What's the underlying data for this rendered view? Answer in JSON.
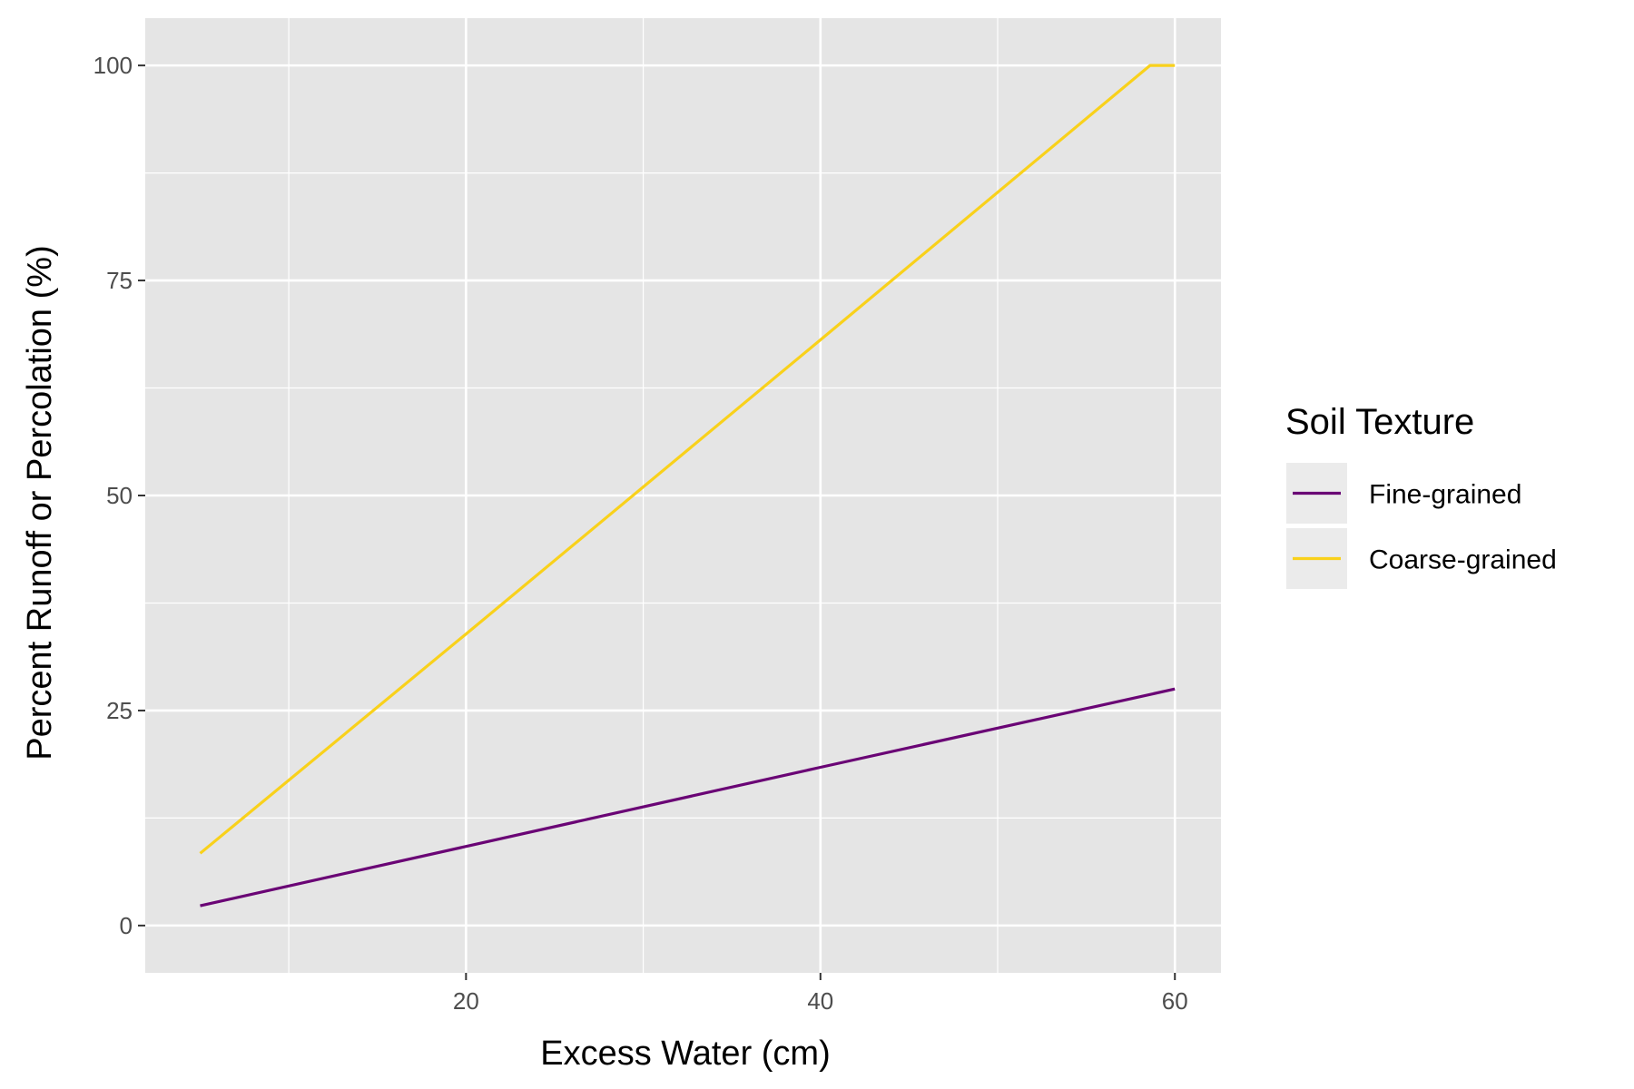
{
  "chart_data": {
    "type": "line",
    "xlabel": "Excess Water (cm)",
    "ylabel": "Percent Runoff or Percolation (%)",
    "xlim": [
      1.9,
      62.6
    ],
    "ylim": [
      -5.5,
      105.5
    ],
    "x_ticks": [
      20,
      40,
      60
    ],
    "x_minor_ticks": [
      10,
      30,
      50
    ],
    "y_ticks": [
      0,
      25,
      50,
      75,
      100
    ],
    "y_minor_ticks": [
      12.5,
      37.5,
      62.5,
      87.5
    ],
    "grid": true,
    "panel_background": "#e5e5e5",
    "legend": {
      "title": "Soil Texture",
      "position": "right"
    },
    "series": [
      {
        "name": "Fine-grained",
        "color": "#6a0475",
        "x": [
          5,
          20,
          40,
          60
        ],
        "y": [
          2.3,
          9.2,
          18.4,
          27.5
        ]
      },
      {
        "name": "Coarse-grained",
        "color": "#f9d11b",
        "x": [
          5,
          20,
          40,
          58.6,
          60
        ],
        "y": [
          8.4,
          33.9,
          68.1,
          100,
          100
        ]
      }
    ]
  }
}
